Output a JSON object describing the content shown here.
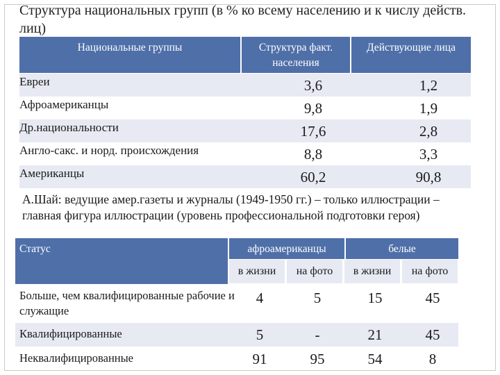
{
  "title": "Структура национальных групп (в % ко всему населению и к числу действ. лиц)",
  "table1": {
    "headers": [
      "Национальные группы",
      "Структура факт. населения",
      "Действующие лица"
    ],
    "rows": [
      {
        "name": "Евреи",
        "population": "3,6",
        "actors": "1,2"
      },
      {
        "name": "Афроамериканцы",
        "population": "9,8",
        "actors": "1,9"
      },
      {
        "name": "Др.национальности",
        "population": "17,6",
        "actors": "2,8"
      },
      {
        "name": "Англо-сакс. и норд. происхождения",
        "population": "8,8",
        "actors": "3,3"
      },
      {
        "name": "Американцы",
        "population": "60,2",
        "actors": "90,8"
      }
    ]
  },
  "note": "А.Шай: ведущие амер.газеты и журналы (1949-1950 гг.) – только иллюстрации – главная фигура иллюстрации (уровень профессиональной подготовки героя)",
  "table2": {
    "status_header": "Статус",
    "group_headers": [
      "афроамериканцы",
      "белые"
    ],
    "sub_headers": [
      "в жизни",
      "на фото",
      "в жизни",
      "на фото"
    ],
    "rows": [
      {
        "name": "Больше, чем квалифицированные рабочие и служащие",
        "values": [
          "4",
          "5",
          "15",
          "45"
        ]
      },
      {
        "name": "Квалифицированные",
        "values": [
          "5",
          "-",
          "21",
          "45"
        ]
      },
      {
        "name": "Неквалифицированные",
        "values": [
          "91",
          "95",
          "54",
          "8"
        ]
      }
    ]
  }
}
